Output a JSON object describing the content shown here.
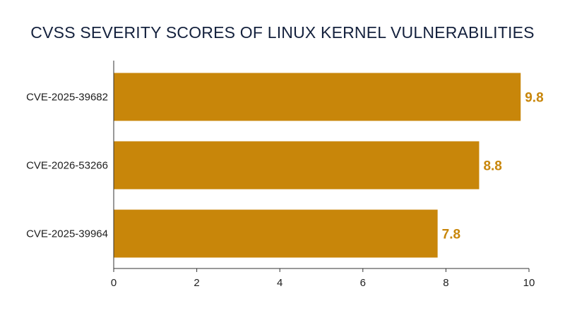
{
  "chart_data": {
    "type": "bar",
    "orientation": "horizontal",
    "title": "CVSS SEVERITY SCORES OF LINUX KERNEL VULNERABILITIES",
    "categories": [
      "CVE-2025-39682",
      "CVE-2026-53266",
      "CVE-2025-39964"
    ],
    "values": [
      9.8,
      8.8,
      7.8
    ],
    "value_labels": [
      "9.8",
      "8.8",
      "7.8"
    ],
    "xlim": [
      0,
      10
    ],
    "xticks": [
      0,
      2,
      4,
      6,
      8,
      10
    ],
    "xtick_labels": [
      "0",
      "2",
      "4",
      "6",
      "8",
      "10"
    ],
    "xlabel": "",
    "ylabel": "",
    "grid": false,
    "bar_color": "#c8860a",
    "label_color": "#c8860a",
    "axis_color": "#333333",
    "title_color": "#14213d"
  }
}
